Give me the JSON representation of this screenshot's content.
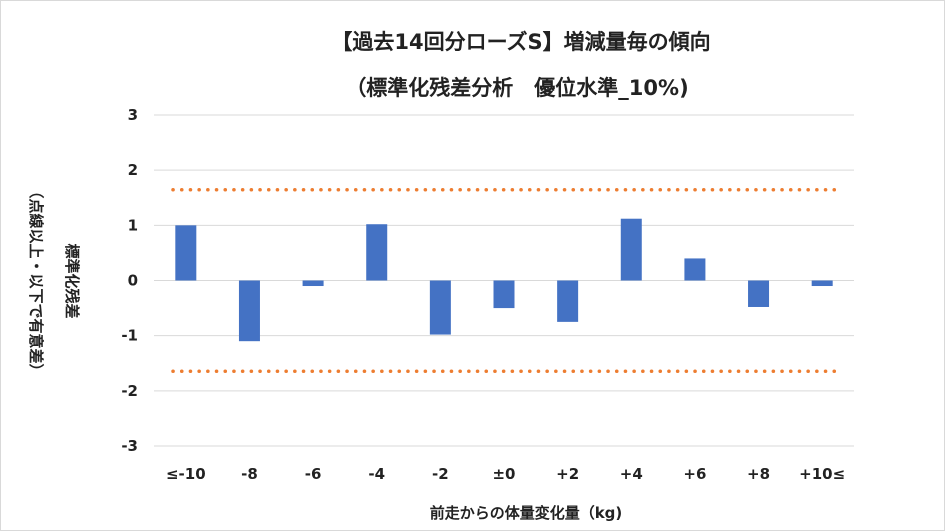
{
  "chart_data": {
    "type": "bar",
    "title": "【過去14回分ローズS】増減量毎の傾向",
    "subtitle": "（標準化残差分析　優位水準_10%)",
    "xlabel": "前走からの体量変化量（kg)",
    "ylabel_line1": "標準化残差",
    "ylabel_line2": "（点線以上・以下で有意差）",
    "categories": [
      "≤-10",
      "-8",
      "-6",
      "-4",
      "-2",
      "±0",
      "+2",
      "+4",
      "+6",
      "+8",
      "+10≤"
    ],
    "series": [
      {
        "values": [
          1.0,
          -1.1,
          -0.1,
          1.02,
          -0.98,
          -0.5,
          -0.75,
          1.12,
          0.4,
          -0.48,
          -0.1
        ]
      }
    ],
    "yticks": [
      "3",
      "2",
      "1",
      "0",
      "-1",
      "-2",
      "-3"
    ],
    "ylim": [
      -3,
      3
    ],
    "threshold_lines": [
      1.645,
      -1.645
    ],
    "grid": true,
    "colors": {
      "bar": "#4472C4",
      "threshold": "#ED7D31",
      "grid": "#d9d9d9"
    }
  }
}
